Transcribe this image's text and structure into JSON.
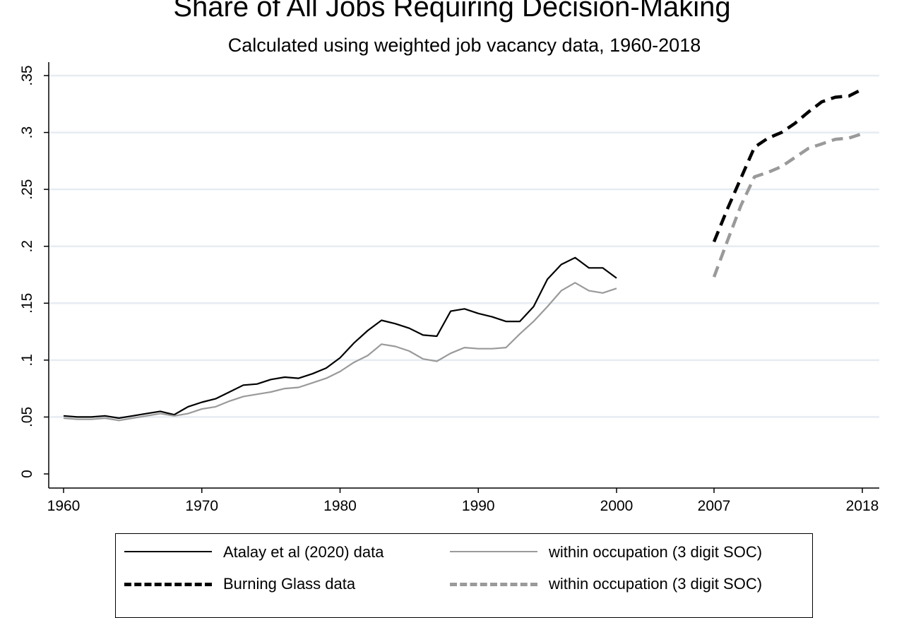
{
  "title": "Share of All Jobs Requiring Decision-Making",
  "subtitle": "Calculated using weighted job vacancy data, 1960-2018",
  "chart_data": {
    "type": "line",
    "title": "Share of All Jobs Requiring Decision-Making",
    "subtitle": "Calculated using weighted job vacancy data, 1960-2018",
    "xlabel": "",
    "ylabel": "",
    "ylim": [
      0,
      0.35
    ],
    "grid": true,
    "legend_position": "bottom",
    "y_ticks": [
      "0",
      ".05",
      ".1",
      ".15",
      ".2",
      ".25",
      ".3",
      ".35"
    ],
    "y_tick_values": [
      0,
      0.05,
      0.1,
      0.15,
      0.2,
      0.25,
      0.3,
      0.35
    ],
    "x_tick_labels": [
      "1960",
      "1970",
      "1980",
      "1990",
      "2000",
      "2007",
      "2018"
    ],
    "x_segments": [
      {
        "range": [
          1960,
          2000
        ],
        "ticks": [
          "1960",
          "1970",
          "1980",
          "1990",
          "2000"
        ]
      },
      {
        "range": [
          2007,
          2018
        ],
        "ticks": [
          "2007",
          "2018"
        ]
      }
    ],
    "series": [
      {
        "name": "Atalay et al (2020) data",
        "color": "#000000",
        "style": "solid",
        "x": [
          1960,
          1961,
          1962,
          1963,
          1964,
          1965,
          1966,
          1967,
          1968,
          1969,
          1970,
          1971,
          1972,
          1973,
          1974,
          1975,
          1976,
          1977,
          1978,
          1979,
          1980,
          1981,
          1982,
          1983,
          1984,
          1985,
          1986,
          1987,
          1988,
          1989,
          1990,
          1991,
          1992,
          1993,
          1994,
          1995,
          1996,
          1997,
          1998,
          1999,
          2000
        ],
        "values": [
          0.051,
          0.05,
          0.05,
          0.051,
          0.049,
          0.051,
          0.053,
          0.055,
          0.052,
          0.059,
          0.063,
          0.066,
          0.072,
          0.078,
          0.079,
          0.083,
          0.085,
          0.084,
          0.088,
          0.093,
          0.102,
          0.115,
          0.126,
          0.135,
          0.132,
          0.128,
          0.122,
          0.121,
          0.143,
          0.145,
          0.141,
          0.138,
          0.134,
          0.134,
          0.147,
          0.171,
          0.184,
          0.19,
          0.181,
          0.181,
          0.172
        ]
      },
      {
        "name": "within occupation (3 digit SOC)",
        "color": "#9a9a9a",
        "style": "solid",
        "x": [
          1960,
          1961,
          1962,
          1963,
          1964,
          1965,
          1966,
          1967,
          1968,
          1969,
          1970,
          1971,
          1972,
          1973,
          1974,
          1975,
          1976,
          1977,
          1978,
          1979,
          1980,
          1981,
          1982,
          1983,
          1984,
          1985,
          1986,
          1987,
          1988,
          1989,
          1990,
          1991,
          1992,
          1993,
          1994,
          1995,
          1996,
          1997,
          1998,
          1999,
          2000
        ],
        "values": [
          0.049,
          0.048,
          0.048,
          0.049,
          0.047,
          0.049,
          0.051,
          0.053,
          0.051,
          0.053,
          0.057,
          0.059,
          0.064,
          0.068,
          0.07,
          0.072,
          0.075,
          0.076,
          0.08,
          0.084,
          0.09,
          0.098,
          0.104,
          0.114,
          0.112,
          0.108,
          0.101,
          0.099,
          0.106,
          0.111,
          0.11,
          0.11,
          0.111,
          0.123,
          0.134,
          0.147,
          0.161,
          0.168,
          0.161,
          0.159,
          0.163
        ]
      },
      {
        "name": "Burning Glass data",
        "color": "#000000",
        "style": "dashed",
        "x": [
          2007,
          2008,
          2009,
          2010,
          2011,
          2012,
          2013,
          2014,
          2015,
          2016,
          2017,
          2018
        ],
        "values": [
          0.204,
          0.233,
          0.26,
          0.287,
          0.295,
          0.3,
          0.308,
          0.318,
          0.327,
          0.331,
          0.332,
          0.338
        ]
      },
      {
        "name": "within occupation (3 digit SOC)",
        "color": "#9a9a9a",
        "style": "dashed",
        "x": [
          2007,
          2008,
          2009,
          2010,
          2011,
          2012,
          2013,
          2014,
          2015,
          2016,
          2017,
          2018
        ],
        "values": [
          0.173,
          0.205,
          0.236,
          0.261,
          0.265,
          0.27,
          0.278,
          0.286,
          0.29,
          0.294,
          0.295,
          0.299
        ]
      }
    ]
  }
}
